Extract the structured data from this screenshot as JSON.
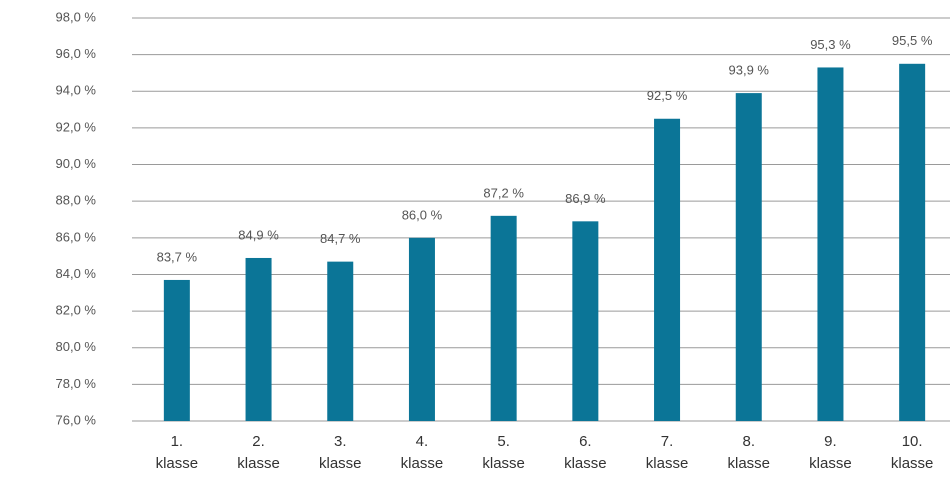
{
  "chart_data": {
    "type": "bar",
    "categories": [
      "1.\nklasse",
      "2.\nklasse",
      "3.\nklasse",
      "4.\nklasse",
      "5.\nklasse",
      "6.\nklasse",
      "7.\nklasse",
      "8.\nklasse",
      "9.\nklasse",
      "10.\nklasse"
    ],
    "values": [
      83.7,
      84.9,
      84.7,
      86.0,
      87.2,
      86.9,
      92.5,
      93.9,
      95.3,
      95.5
    ],
    "value_labels": [
      "83,7 %",
      "84,9 %",
      "84,7 %",
      "86,0 %",
      "87,2 %",
      "86,9 %",
      "92,5 %",
      "93,9 %",
      "95,3 %",
      "95,5 %"
    ],
    "color": "#0b7597",
    "ylim": [
      76,
      98
    ],
    "yticks": [
      {
        "value": 76,
        "label": "76,0 %"
      },
      {
        "value": 78,
        "label": "78,0 %"
      },
      {
        "value": 80,
        "label": "80,0 %"
      },
      {
        "value": 82,
        "label": "82,0 %"
      },
      {
        "value": 84,
        "label": "84,0 %"
      },
      {
        "value": 86,
        "label": "86,0 %"
      },
      {
        "value": 88,
        "label": "88,0 %"
      },
      {
        "value": 90,
        "label": "90,0 %"
      },
      {
        "value": 92,
        "label": "92,0 %"
      },
      {
        "value": 94,
        "label": "94,0 %"
      },
      {
        "value": 96,
        "label": "96,0 %"
      },
      {
        "value": 98,
        "label": "98,0 %"
      }
    ],
    "grid": true
  }
}
